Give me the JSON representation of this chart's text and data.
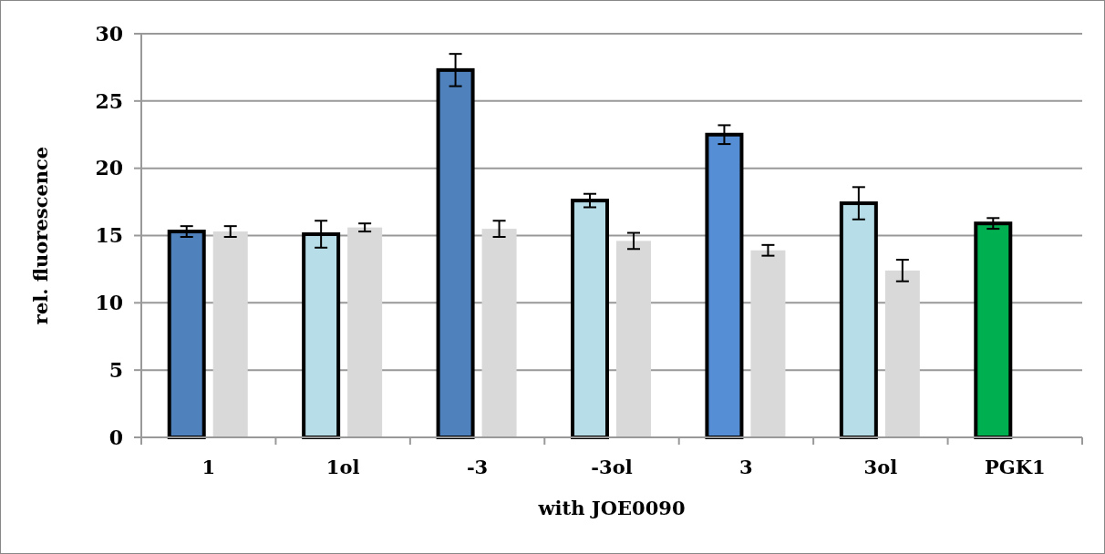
{
  "chart_data": {
    "type": "bar",
    "xlabel": "with JOE0090",
    "ylabel": "rel. fluorescence",
    "categories": [
      "1",
      "1ol",
      "-3",
      "-3ol",
      "3",
      "3ol",
      "PGK1"
    ],
    "series": [
      {
        "colors": [
          "#4f81bd",
          "#b7dde8",
          "#4f81bd",
          "#b7dde8",
          "#558ed5",
          "#b7dde8",
          "#00b050"
        ],
        "values": [
          15.3,
          15.1,
          27.3,
          17.6,
          22.5,
          17.4,
          15.9
        ],
        "errors": [
          0.4,
          1.0,
          1.2,
          0.5,
          0.7,
          1.2,
          0.4
        ]
      },
      {
        "color": "#d9d9d9",
        "values": [
          15.3,
          15.6,
          15.5,
          14.6,
          13.9,
          12.4,
          null
        ],
        "errors": [
          0.4,
          0.3,
          0.6,
          0.6,
          0.4,
          0.8,
          null
        ]
      }
    ],
    "ylim": [
      0,
      30
    ],
    "yticks": [
      0,
      5,
      10,
      15,
      20,
      25,
      30
    ],
    "grid": "y"
  }
}
